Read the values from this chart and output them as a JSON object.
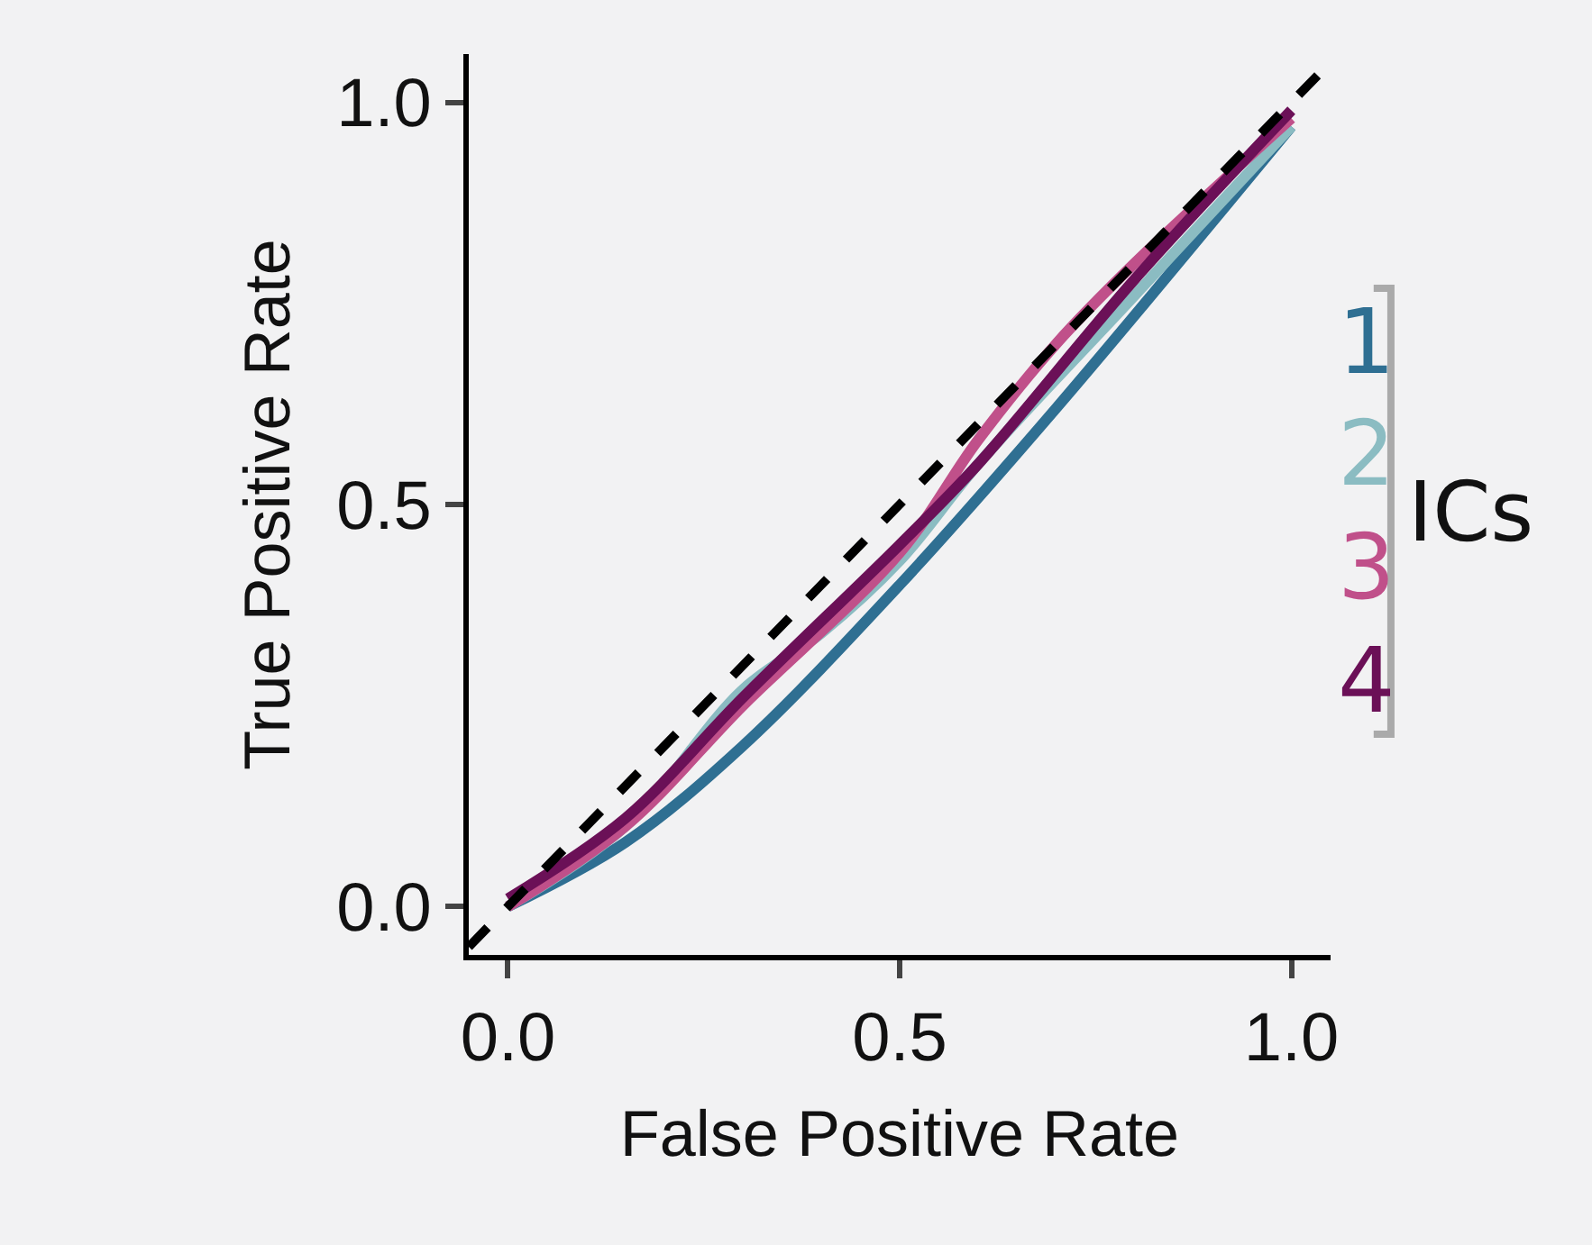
{
  "chart_data": {
    "type": "line",
    "xlabel": "False Positive Rate",
    "ylabel": "True Positive Rate",
    "legend_title": "ICs",
    "xlim": [
      -0.05,
      1.05
    ],
    "ylim": [
      -0.06,
      1.06
    ],
    "xticks": [
      {
        "value": 0,
        "label": "0.0"
      },
      0.5,
      {
        "value": 1,
        "label": "1.0"
      }
    ],
    "yticks": [
      {
        "value": 0,
        "label": "0.0"
      },
      0.5,
      {
        "value": 1,
        "label": "1.0"
      }
    ],
    "grid": false,
    "legend": "right",
    "marker": "none",
    "series": [
      {
        "name": "1",
        "color": "#2f6f92",
        "x": [
          0,
          0.15,
          0.3,
          0.5,
          0.7,
          1
        ],
        "values": [
          0,
          0.08,
          0.2,
          0.4,
          0.62,
          0.97
        ]
      },
      {
        "name": "2",
        "color": "#8bbcc2",
        "x": [
          0,
          0.15,
          0.3,
          0.4,
          0.5,
          0.6,
          0.8,
          1
        ],
        "values": [
          0,
          0.1,
          0.27,
          0.34,
          0.43,
          0.55,
          0.76,
          0.97
        ]
      },
      {
        "name": "3",
        "color": "#c0508a",
        "x": [
          0,
          0.15,
          0.3,
          0.5,
          0.6,
          0.7,
          0.8,
          1
        ],
        "values": [
          0,
          0.1,
          0.25,
          0.44,
          0.58,
          0.7,
          0.8,
          0.98
        ]
      },
      {
        "name": "4",
        "color": "#6b1057",
        "x": [
          0,
          0.15,
          0.3,
          0.5,
          0.6,
          0.8,
          1
        ],
        "values": [
          0.01,
          0.11,
          0.26,
          0.45,
          0.55,
          0.78,
          0.99
        ]
      },
      {
        "color": "#000000",
        "line_style": "dashed",
        "x": [
          -0.05,
          1.05
        ],
        "values": [
          -0.05,
          1.05
        ]
      }
    ]
  }
}
